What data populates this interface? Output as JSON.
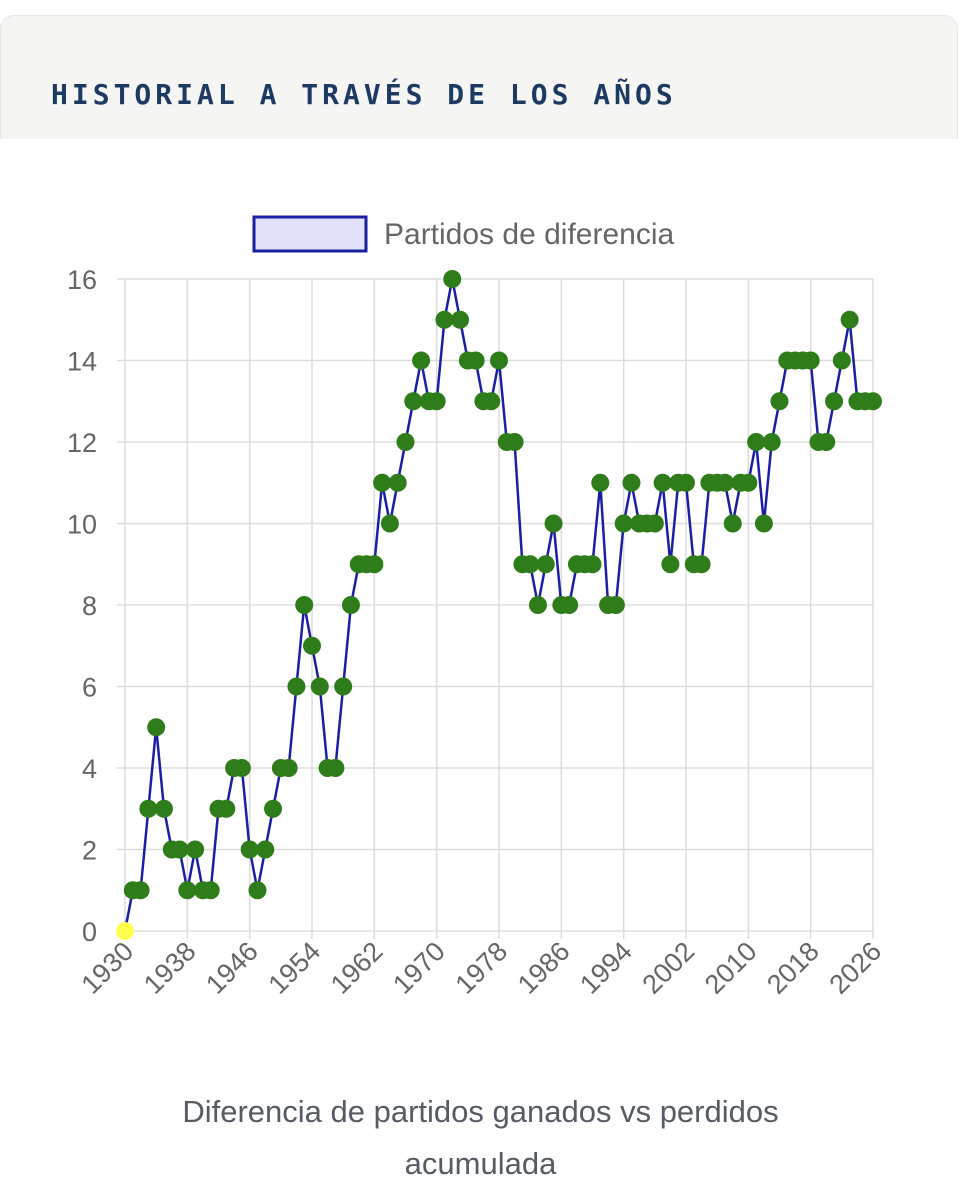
{
  "header": {
    "title": "HISTORIAL A TRAVÉS DE LOS AÑOS"
  },
  "caption": {
    "line1": "Diferencia de partidos ganados vs perdidos",
    "line2": "acumulada"
  },
  "chart_data": {
    "type": "line",
    "title": "",
    "xlabel": "",
    "ylabel": "",
    "legend": {
      "label": "Partidos de diferencia",
      "position": "top"
    },
    "grid": true,
    "xlim": [
      1930,
      2026
    ],
    "ylim": [
      0,
      16
    ],
    "x_ticks": [
      1930,
      1938,
      1946,
      1954,
      1962,
      1970,
      1978,
      1986,
      1994,
      2002,
      2010,
      2018,
      2026
    ],
    "y_ticks": [
      0,
      2,
      4,
      6,
      8,
      10,
      12,
      14,
      16
    ],
    "colors": {
      "line": "#1b1fa6",
      "legend_fill": "#e2e3fa",
      "point": "#2f7d1a",
      "first_point": "#ffff4d",
      "grid": "#dddddd",
      "tick_text": "#666666"
    },
    "series": [
      {
        "name": "Partidos de diferencia",
        "x": [
          1930,
          1931,
          1932,
          1933,
          1934,
          1935,
          1936,
          1937,
          1938,
          1939,
          1940,
          1941,
          1942,
          1943,
          1944,
          1945,
          1946,
          1947,
          1948,
          1949,
          1950,
          1951,
          1952,
          1953,
          1954,
          1955,
          1956,
          1957,
          1958,
          1959,
          1960,
          1961,
          1962,
          1963,
          1964,
          1965,
          1966,
          1967,
          1968,
          1969,
          1970,
          1971,
          1972,
          1973,
          1974,
          1975,
          1976,
          1977,
          1978,
          1979,
          1980,
          1981,
          1982,
          1983,
          1984,
          1985,
          1986,
          1987,
          1988,
          1989,
          1990,
          1991,
          1992,
          1993,
          1994,
          1995,
          1996,
          1997,
          1998,
          1999,
          2000,
          2001,
          2002,
          2003,
          2004,
          2005,
          2006,
          2007,
          2008,
          2009,
          2010,
          2011,
          2012,
          2013,
          2014,
          2015,
          2016,
          2017,
          2018,
          2019,
          2020,
          2021,
          2022,
          2023,
          2024,
          2025,
          2026
        ],
        "y": [
          0,
          1,
          1,
          3,
          5,
          3,
          2,
          2,
          1,
          2,
          1,
          1,
          3,
          3,
          4,
          4,
          2,
          1,
          2,
          3,
          4,
          4,
          6,
          8,
          7,
          6,
          4,
          4,
          6,
          8,
          9,
          9,
          9,
          11,
          10,
          11,
          12,
          13,
          14,
          13,
          13,
          15,
          16,
          15,
          14,
          14,
          13,
          13,
          14,
          12,
          12,
          9,
          9,
          8,
          9,
          10,
          8,
          8,
          9,
          9,
          9,
          11,
          8,
          8,
          10,
          11,
          10,
          10,
          10,
          11,
          9,
          11,
          11,
          9,
          9,
          11,
          11,
          11,
          10,
          11,
          11,
          12,
          10,
          12,
          13,
          14,
          14,
          14,
          14,
          12,
          12,
          13,
          14,
          15,
          13,
          13,
          13
        ]
      }
    ]
  }
}
